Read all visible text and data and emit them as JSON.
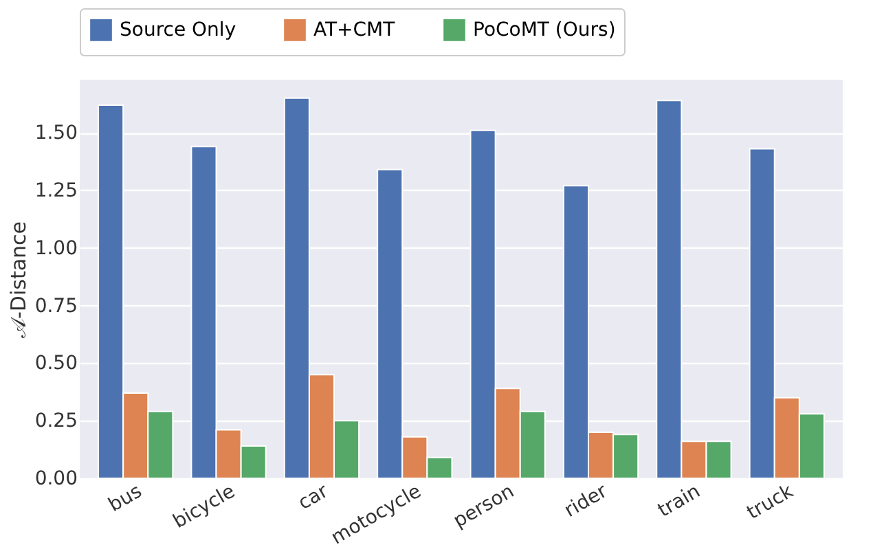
{
  "chart_data": {
    "type": "bar",
    "ylabel": "𝒜-Distance",
    "categories": [
      "bus",
      "bicycle",
      "car",
      "motocycle",
      "person",
      "rider",
      "train",
      "truck"
    ],
    "series": [
      {
        "name": "Source Only",
        "color": "#4c72b0",
        "values": [
          1.62,
          1.44,
          1.65,
          1.34,
          1.51,
          1.27,
          1.64,
          1.43
        ]
      },
      {
        "name": "AT+CMT",
        "color": "#dd8452",
        "values": [
          0.37,
          0.21,
          0.45,
          0.18,
          0.39,
          0.2,
          0.16,
          0.35
        ]
      },
      {
        "name": "PoCoMT (Ours)",
        "color": "#55a868",
        "values": [
          0.29,
          0.14,
          0.25,
          0.09,
          0.29,
          0.19,
          0.16,
          0.28
        ]
      }
    ],
    "ylim": [
      0,
      1.73
    ],
    "yticks": [
      {
        "value": 0,
        "label": "0.00"
      },
      {
        "value": 0.25,
        "label": "0.25"
      },
      {
        "value": 0.5,
        "label": "0.50"
      },
      {
        "value": 0.75,
        "label": "0.75"
      },
      {
        "value": 1,
        "label": "1.00"
      },
      {
        "value": 1.25,
        "label": "1.25"
      },
      {
        "value": 1.5,
        "label": "1.50"
      }
    ],
    "grid": "y",
    "legend": "top"
  }
}
